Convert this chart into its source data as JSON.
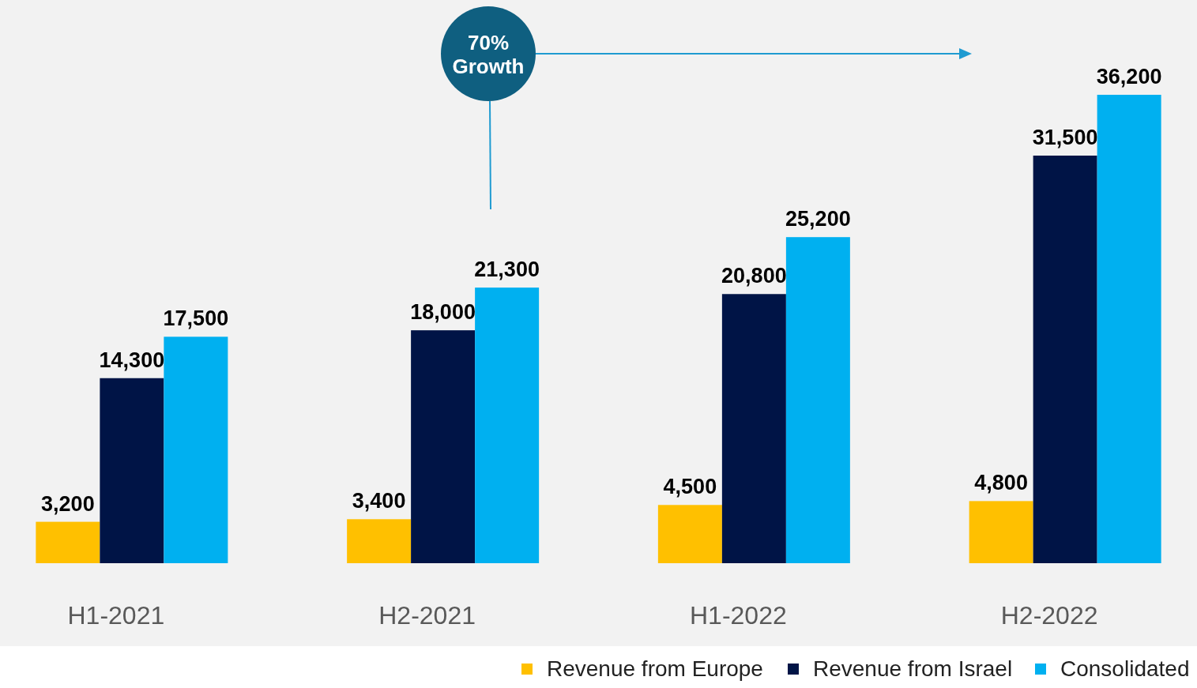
{
  "chart_data": {
    "type": "bar",
    "categories": [
      "H1-2021",
      "H2-2021",
      "H1-2022",
      "H2-2022"
    ],
    "series": [
      {
        "name": "Revenue from Europe",
        "color": "#ffc000",
        "values": [
          3200,
          3400,
          4500,
          4800
        ],
        "value_labels": [
          "3,200",
          "3,400",
          "4,500",
          "4,800"
        ]
      },
      {
        "name": "Revenue from Israel",
        "color": "#001446",
        "values": [
          14300,
          18000,
          20800,
          31500
        ],
        "value_labels": [
          "14,300",
          "18,000",
          "20,800",
          "31,500"
        ]
      },
      {
        "name": "Consolidated",
        "color": "#00b0f0",
        "values": [
          17500,
          21300,
          25200,
          36200
        ],
        "value_labels": [
          "17,500",
          "21,300",
          "25,200",
          "36,200"
        ]
      }
    ],
    "legend": "bottom right",
    "annotations": [
      "70% Growth"
    ]
  }
}
